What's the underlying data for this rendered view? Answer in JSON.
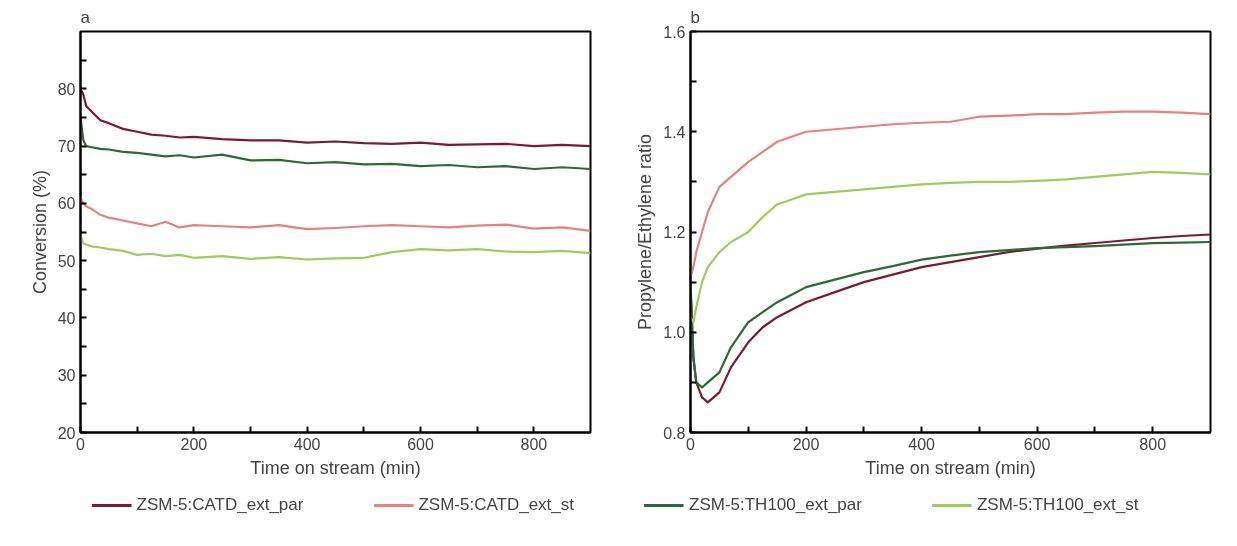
{
  "chart_data": [
    {
      "type": "line",
      "title": "a",
      "xlabel": "Time on stream (min)",
      "ylabel": "Conversion (%)",
      "xlim": [
        0,
        900
      ],
      "ylim": [
        20,
        90
      ],
      "xticks": [
        0,
        {
          "value": 100,
          "label": null
        },
        200,
        {
          "value": 300,
          "label": null
        },
        400,
        {
          "value": 500,
          "label": null
        },
        600,
        {
          "value": 700,
          "label": null
        },
        800
      ],
      "yticks": [
        20,
        {
          "value": 25,
          "label": null
        },
        30,
        {
          "value": 35,
          "label": null
        },
        40,
        {
          "value": 45,
          "label": null
        },
        50,
        {
          "value": 55,
          "label": null
        },
        60,
        {
          "value": 65,
          "label": null
        },
        70,
        {
          "value": 75,
          "label": null
        },
        80,
        {
          "value": 85,
          "label": null
        }
      ],
      "grid": false,
      "legend": "bottom",
      "line_style": "solid",
      "marker": "none",
      "x": [
        0,
        5,
        10,
        20,
        35,
        50,
        75,
        100,
        125,
        150,
        175,
        200,
        250,
        300,
        350,
        400,
        450,
        500,
        550,
        600,
        650,
        700,
        750,
        800,
        850,
        900
      ],
      "series": [
        {
          "name": "ZSM-5:CATD_ext_par",
          "color": "#7b1a33",
          "values": [
            80,
            79,
            77,
            76,
            74.5,
            74,
            73,
            72.5,
            72,
            71.8,
            71.5,
            71.6,
            71.2,
            71,
            71,
            70.6,
            70.8,
            70.5,
            70.4,
            70.6,
            70.2,
            70.3,
            70.4,
            70,
            70.2,
            70
          ]
        },
        {
          "name": "ZSM-5:CATD_ext_st",
          "color": "#e8807e",
          "values": [
            61,
            60,
            59.5,
            59,
            58,
            57.5,
            57,
            56.5,
            56,
            56.8,
            55.8,
            56.2,
            56,
            55.8,
            56.2,
            55.5,
            55.7,
            56,
            56.2,
            56,
            55.8,
            56.1,
            56.3,
            55.6,
            55.8,
            55.2
          ]
        },
        {
          "name": "ZSM-5:TH100_ext_par",
          "color": "#2a6b35",
          "values": [
            75,
            71,
            70,
            69.8,
            69.5,
            69.4,
            69,
            68.8,
            68.5,
            68.2,
            68.4,
            68,
            68.5,
            67.5,
            67.6,
            67,
            67.2,
            66.8,
            66.9,
            66.5,
            66.7,
            66.3,
            66.5,
            66,
            66.3,
            66
          ]
        },
        {
          "name": "ZSM-5:TH100_ext_st",
          "color": "#9dcc5a",
          "values": [
            54.5,
            53,
            52.8,
            52.5,
            52.3,
            52,
            51.7,
            51,
            51.2,
            50.8,
            51,
            50.5,
            50.8,
            50.3,
            50.6,
            50.2,
            50.4,
            50.5,
            51.5,
            52,
            51.8,
            52,
            51.6,
            51.5,
            51.7,
            51.3
          ]
        }
      ]
    },
    {
      "type": "line",
      "title": "b",
      "xlabel": "Time on stream (min)",
      "ylabel": "Propylene/Ethylene ratio",
      "xlim": [
        0,
        900
      ],
      "ylim": [
        0.8,
        1.6
      ],
      "xticks": [
        0,
        {
          "value": 100,
          "label": null
        },
        200,
        {
          "value": 300,
          "label": null
        },
        400,
        {
          "value": 500,
          "label": null
        },
        600,
        {
          "value": 700,
          "label": null
        },
        800
      ],
      "yticks": [
        0.8,
        {
          "value": 0.9,
          "label": null
        },
        {
          "value": 1.0,
          "label": "1.0"
        },
        {
          "value": 1.1,
          "label": null
        },
        1.2,
        {
          "value": 1.3,
          "label": null
        },
        1.4,
        {
          "value": 1.5,
          "label": null
        },
        1.6
      ],
      "grid": false,
      "legend": false,
      "line_style": "solid",
      "marker": "none",
      "x": [
        0,
        5,
        10,
        20,
        30,
        50,
        70,
        100,
        125,
        150,
        175,
        200,
        250,
        300,
        350,
        400,
        450,
        500,
        550,
        600,
        650,
        700,
        750,
        800,
        850,
        900
      ],
      "series": [
        {
          "color": "#7b1a33",
          "values": [
            1.09,
            0.95,
            0.9,
            0.87,
            0.86,
            0.88,
            0.93,
            0.98,
            1.01,
            1.03,
            1.045,
            1.06,
            1.08,
            1.1,
            1.115,
            1.13,
            1.14,
            1.15,
            1.16,
            1.167,
            1.173,
            1.178,
            1.183,
            1.188,
            1.192,
            1.195
          ]
        },
        {
          "color": "#e8807e",
          "values": [
            1.11,
            1.13,
            1.16,
            1.2,
            1.24,
            1.29,
            1.31,
            1.34,
            1.36,
            1.38,
            1.39,
            1.4,
            1.405,
            1.41,
            1.415,
            1.418,
            1.42,
            1.43,
            1.432,
            1.435,
            1.435,
            1.438,
            1.44,
            1.44,
            1.438,
            1.435
          ]
        },
        {
          "color": "#2a6b35",
          "values": [
            1.1,
            0.95,
            0.9,
            0.89,
            0.9,
            0.92,
            0.97,
            1.02,
            1.04,
            1.06,
            1.075,
            1.09,
            1.105,
            1.12,
            1.132,
            1.145,
            1.153,
            1.16,
            1.164,
            1.168,
            1.17,
            1.172,
            1.175,
            1.178,
            1.179,
            1.18
          ]
        },
        {
          "color": "#9dcc5a",
          "values": [
            1.03,
            1.02,
            1.05,
            1.1,
            1.13,
            1.16,
            1.18,
            1.2,
            1.23,
            1.255,
            1.265,
            1.275,
            1.28,
            1.285,
            1.29,
            1.295,
            1.298,
            1.3,
            1.3,
            1.302,
            1.305,
            1.31,
            1.315,
            1.32,
            1.318,
            1.315
          ]
        }
      ]
    }
  ]
}
